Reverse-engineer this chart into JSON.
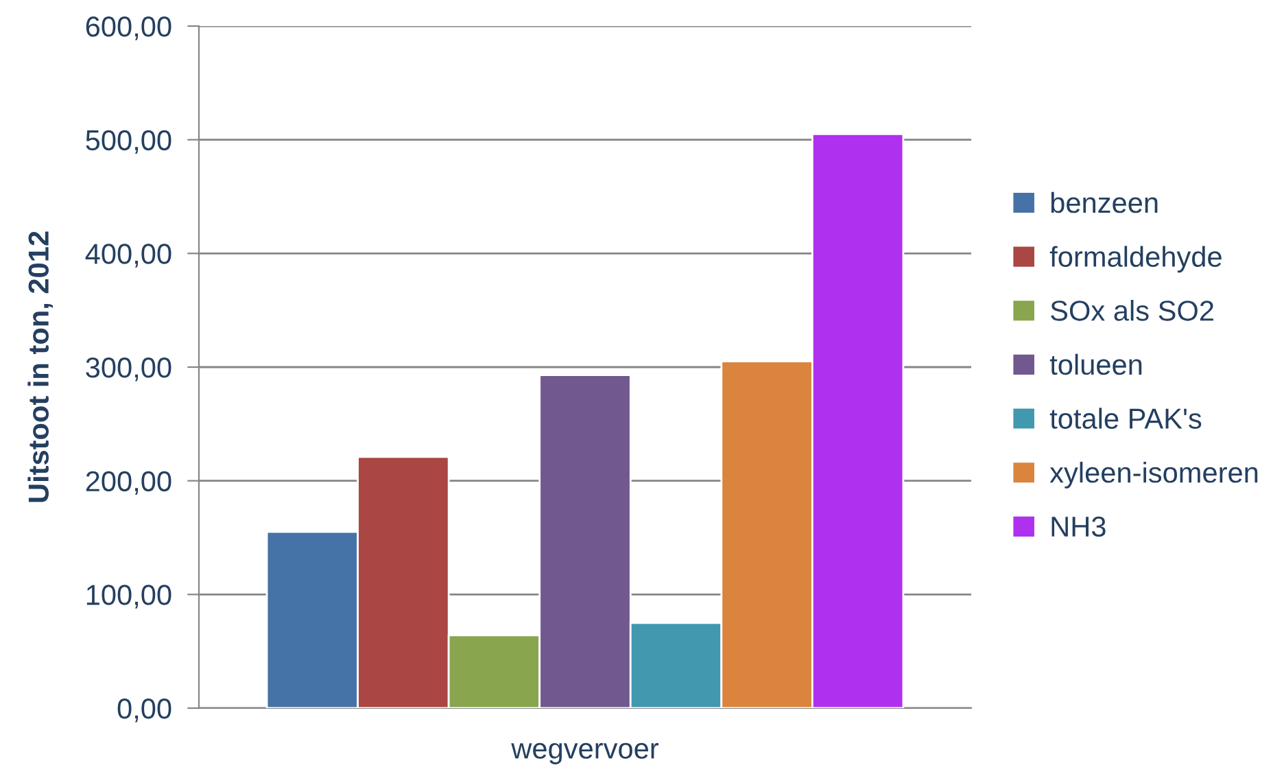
{
  "chart_data": {
    "type": "bar",
    "ylabel": "Uitstoot in ton, 2012",
    "categories": [
      "wegvervoer"
    ],
    "series": [
      {
        "name": "benzeen",
        "color": "#4572a7",
        "values": [
          155
        ]
      },
      {
        "name": "formaldehyde",
        "color": "#aa4643",
        "values": [
          221
        ]
      },
      {
        "name": "SOx als SO2",
        "color": "#89a54e",
        "values": [
          64
        ]
      },
      {
        "name": "tolueen",
        "color": "#71588f",
        "values": [
          293
        ]
      },
      {
        "name": "totale PAK's",
        "color": "#4198af",
        "values": [
          75
        ]
      },
      {
        "name": "xyleen-isomeren",
        "color": "#db843d",
        "values": [
          305
        ]
      },
      {
        "name": "NH3",
        "color": "#b030f0",
        "values": [
          505
        ]
      }
    ],
    "ylim": [
      0,
      600
    ],
    "yticks": [
      {
        "value": 0,
        "label": "0,00"
      },
      {
        "value": 100,
        "label": "100,00"
      },
      {
        "value": 200,
        "label": "200,00"
      },
      {
        "value": 300,
        "label": "300,00"
      },
      {
        "value": 400,
        "label": "400,00"
      },
      {
        "value": 500,
        "label": "500,00"
      },
      {
        "value": 600,
        "label": "600,00"
      }
    ],
    "grid": "y",
    "legend": "right"
  }
}
